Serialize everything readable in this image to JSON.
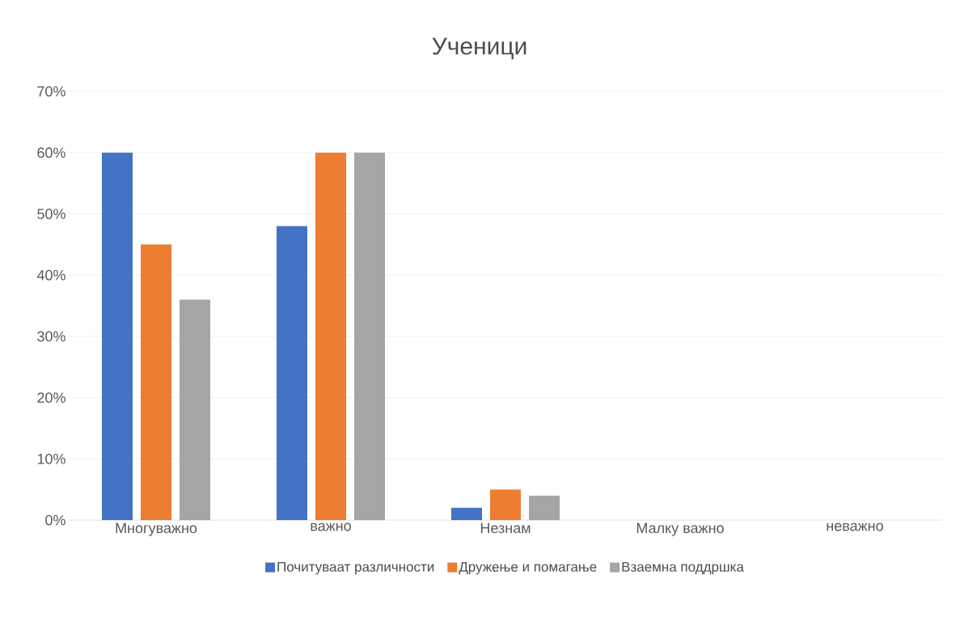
{
  "chart_data": {
    "type": "bar",
    "title": "Ученици",
    "categories": [
      "Многуважно",
      "важно",
      "Незнам",
      "Малку важно",
      "неважно"
    ],
    "series": [
      {
        "name": "Почитуваат различности",
        "color": "#4472c4",
        "values": [
          60,
          48,
          2,
          0,
          0
        ]
      },
      {
        "name": "Дружење и помагање",
        "color": "#ed7d31",
        "values": [
          45,
          60,
          5,
          0,
          0
        ]
      },
      {
        "name": "Взаемна поддршка",
        "color": "#a5a5a5",
        "values": [
          36,
          60,
          4,
          0,
          0
        ]
      }
    ],
    "ylim": [
      0,
      70
    ],
    "yticks": [
      {
        "value": 0,
        "label": "0%"
      },
      {
        "value": 10,
        "label": "10%"
      },
      {
        "value": 20,
        "label": "20%"
      },
      {
        "value": 30,
        "label": "30%"
      },
      {
        "value": 40,
        "label": "40%"
      },
      {
        "value": 50,
        "label": "50%"
      },
      {
        "value": 60,
        "label": "60%"
      },
      {
        "value": 70,
        "label": "70%"
      }
    ],
    "grid": "y",
    "legend": "bottom"
  }
}
